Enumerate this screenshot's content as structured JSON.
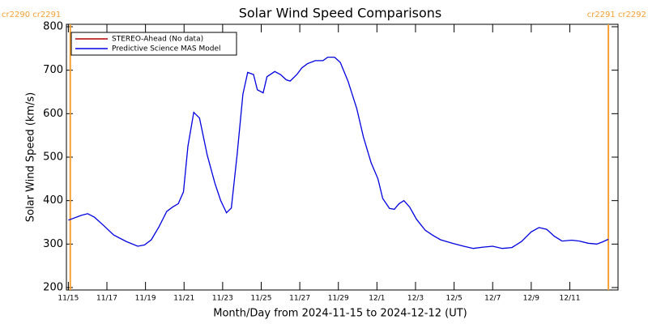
{
  "chart_data": {
    "type": "line",
    "title": "Solar Wind Speed Comparisons",
    "xlabel": "Month/Day from 2024-11-15 to 2024-12-12 (UT)",
    "ylabel": "Solar Wind Speed (km/s)",
    "xlim": [
      -0.1,
      28.5
    ],
    "xticks": [
      {
        "value": 0,
        "label": "11/15"
      },
      {
        "value": 2,
        "label": "11/17"
      },
      {
        "value": 4,
        "label": "11/19"
      },
      {
        "value": 6,
        "label": "11/21"
      },
      {
        "value": 8,
        "label": "11/23"
      },
      {
        "value": 10,
        "label": "11/25"
      },
      {
        "value": 12,
        "label": "11/27"
      },
      {
        "value": 14,
        "label": "11/29"
      },
      {
        "value": 16,
        "label": "12/1"
      },
      {
        "value": 18,
        "label": "12/3"
      },
      {
        "value": 20,
        "label": "12/5"
      },
      {
        "value": 22,
        "label": "12/7"
      },
      {
        "value": 24,
        "label": "12/9"
      },
      {
        "value": 26,
        "label": "12/11"
      }
    ],
    "ylim": [
      200,
      800
    ],
    "yticks": [
      200,
      300,
      400,
      500,
      600,
      700,
      800
    ],
    "legend": "upper left",
    "carrington": [
      {
        "x": 0.1,
        "label": "cr2290 cr2291",
        "color": "#f5a030"
      },
      {
        "x": 28,
        "label": "cr2291 cr2292",
        "color": "#f5a030"
      }
    ],
    "series": [
      {
        "name": "STEREO-Ahead (No data)",
        "color": "#b00000",
        "x": [],
        "values": []
      },
      {
        "name": "Predictive Science MAS Model",
        "color": "#0000e0",
        "x": [
          0,
          0.67,
          1.0,
          1.35,
          1.85,
          2.35,
          3,
          3.6,
          3.95,
          4.3,
          4.7,
          5.1,
          5.4,
          5.7,
          5.97,
          6.2,
          6.5,
          6.8,
          7.2,
          7.6,
          7.9,
          8.2,
          8.45,
          8.75,
          9.05,
          9.3,
          9.6,
          9.8,
          10.1,
          10.3,
          10.7,
          11,
          11.3,
          11.5,
          11.85,
          12.1,
          12.4,
          12.8,
          13.2,
          13.45,
          13.8,
          14.1,
          14.5,
          14.95,
          15.3,
          15.7,
          16.05,
          16.3,
          16.65,
          16.9,
          17.15,
          17.4,
          17.7,
          18.05,
          18.5,
          18.9,
          19.3,
          19.9,
          20.5,
          21,
          21.5,
          22,
          22.5,
          23,
          23.5,
          24,
          24.4,
          24.8,
          25.2,
          25.6,
          26.1,
          26.5,
          26.95,
          27.4,
          27.7,
          28
        ],
        "values": [
          355,
          366,
          370,
          362,
          342,
          321,
          306,
          295,
          298,
          310,
          340,
          375,
          385,
          393,
          420,
          525,
          603,
          590,
          505,
          440,
          400,
          372,
          383,
          505,
          645,
          695,
          690,
          655,
          648,
          685,
          697,
          690,
          678,
          675,
          690,
          705,
          715,
          722,
          722,
          730,
          730,
          718,
          675,
          612,
          546,
          487,
          450,
          405,
          382,
          380,
          393,
          400,
          385,
          357,
          332,
          320,
          310,
          302,
          295,
          290,
          293,
          295,
          290,
          292,
          306,
          328,
          338,
          334,
          318,
          307,
          309,
          307,
          302,
          300,
          305,
          311
        ]
      }
    ]
  }
}
